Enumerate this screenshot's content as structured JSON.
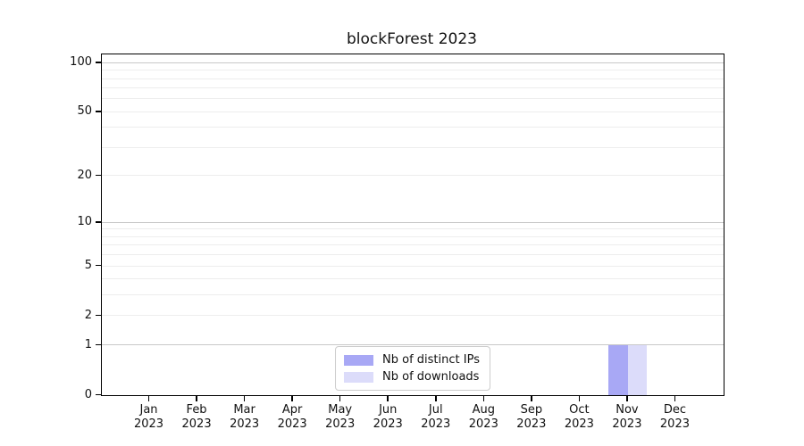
{
  "chart_data": {
    "type": "bar",
    "title": "blockForest 2023",
    "categories": [
      "Jan",
      "Feb",
      "Mar",
      "Apr",
      "May",
      "Jun",
      "Jul",
      "Aug",
      "Sep",
      "Oct",
      "Nov",
      "Dec"
    ],
    "category_year": "2023",
    "series": [
      {
        "name": "Nb of distinct IPs",
        "color": "#a8a8f5",
        "values": [
          0,
          0,
          0,
          0,
          0,
          0,
          0,
          0,
          0,
          0,
          1,
          0
        ]
      },
      {
        "name": "Nb of downloads",
        "color": "#dcdcfa",
        "values": [
          0,
          0,
          0,
          0,
          0,
          0,
          0,
          0,
          0,
          0,
          1,
          0
        ]
      }
    ],
    "xlabel": "",
    "ylabel": "",
    "yscale": "log1p",
    "ylim": [
      0,
      113
    ],
    "yticks": [
      0,
      1,
      2,
      5,
      10,
      20,
      50,
      100
    ],
    "yticks_major_grid": [
      1,
      10,
      100
    ],
    "yticks_minor": [
      2,
      3,
      4,
      5,
      6,
      7,
      8,
      9,
      20,
      30,
      40,
      50,
      60,
      70,
      80,
      90
    ],
    "grid": true,
    "legend_position": "lower center",
    "colors": {
      "major_grid": "#c8c8c8",
      "minor_grid": "#ededed",
      "spine": "#000000",
      "text": "#111111"
    }
  }
}
